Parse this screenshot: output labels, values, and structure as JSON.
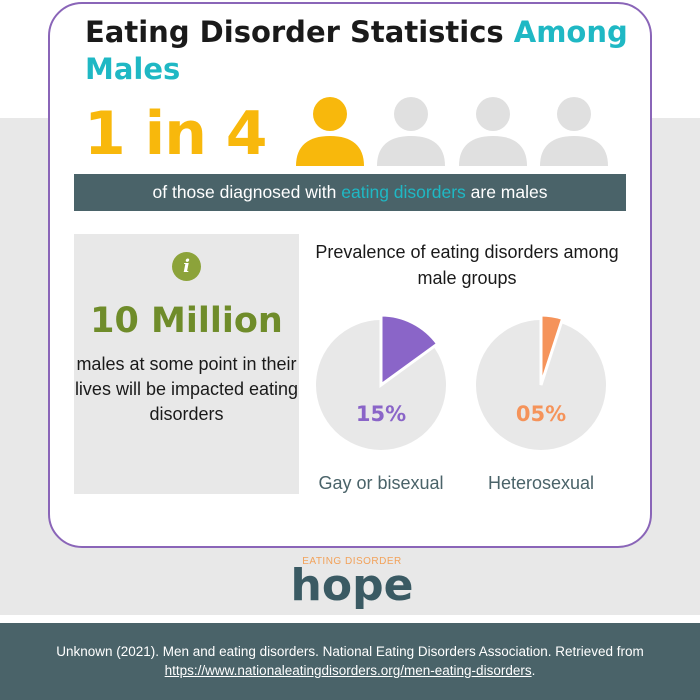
{
  "title": {
    "main": "Eating Disorder Statistics ",
    "accent_start": "Among",
    "accent_end": "Males"
  },
  "headline_stat": {
    "value": "1 in 4",
    "highlighted_count": 1,
    "total_count": 4
  },
  "banner": {
    "before": "of those diagnosed with ",
    "highlight": "eating disorders",
    "after": " are males"
  },
  "info_box": {
    "icon": "info-icon",
    "icon_glyph": "i",
    "big_value": "10 Million",
    "description": "males at some point in their lives will be impacted eating disorders"
  },
  "prevalence": {
    "title": "Prevalence of eating disorders among male groups",
    "groups": [
      {
        "pct_label": "15%",
        "label": "Gay or bisexual",
        "value": 15,
        "color": "#8a65c8"
      },
      {
        "pct_label": "05%",
        "label": "Heterosexual",
        "value": 5,
        "color": "#f5935a"
      }
    ]
  },
  "logo": {
    "top_text": "EATING DISORDER",
    "word": "hope"
  },
  "footer": {
    "citation": "Unknown (2021). Men and eating disorders. National Eating Disorders Association. Retrieved from ",
    "link": "https://www.nationaleatingdisorders.org/men-eating-disorders",
    "end": "."
  },
  "colors": {
    "accent_teal": "#1fb8c4",
    "stat_yellow": "#f8b80c",
    "person_gray": "#e0e0e0",
    "dark_slate": "#4a6369",
    "green": "#6f8c2a",
    "purple_border": "#8a65b8",
    "pie_bg": "#e8e8e8"
  }
}
